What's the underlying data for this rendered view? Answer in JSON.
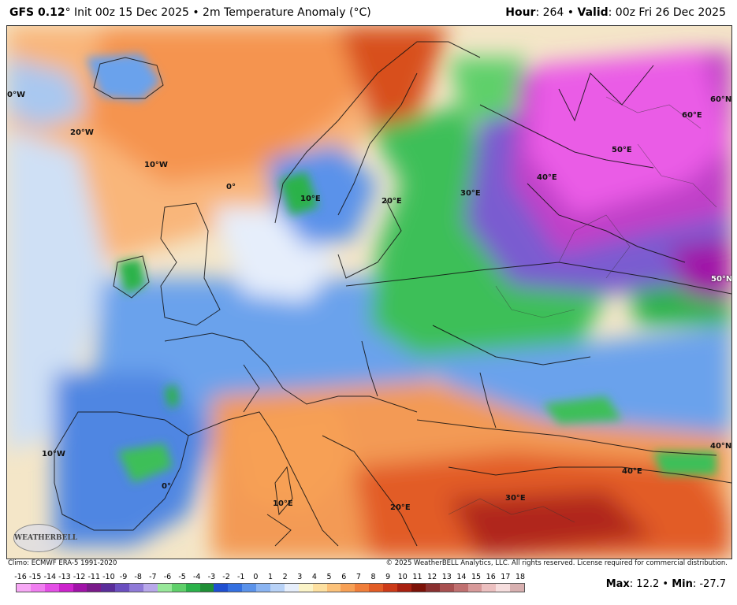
{
  "header": {
    "model": "GFS 0.12",
    "init": "° Init 00z 15 Dec 2025 • 2m Temperature Anomaly (°C)",
    "hour_label": "Hour",
    "hour_value": ": 264 • ",
    "valid_label": "Valid",
    "valid_value": ": 00z Fri 26 Dec 2025"
  },
  "map": {
    "labels": [
      {
        "id": "lon-0w-top",
        "text": "0°W"
      },
      {
        "id": "lon-20w",
        "text": "20°W"
      },
      {
        "id": "lon-10w-top",
        "text": "10°W"
      },
      {
        "id": "lon-0",
        "text": "0°"
      },
      {
        "id": "lon-10e-top",
        "text": "10°E"
      },
      {
        "id": "lon-20e-top",
        "text": "20°E"
      },
      {
        "id": "lon-30e-top",
        "text": "30°E"
      },
      {
        "id": "lon-40e-top",
        "text": "40°E"
      },
      {
        "id": "lon-50e",
        "text": "50°E"
      },
      {
        "id": "lat-60e",
        "text": "60°E"
      },
      {
        "id": "lat-60n",
        "text": "60°N"
      },
      {
        "id": "lat-50n",
        "text": "50°N"
      },
      {
        "id": "lon-10w-bottom",
        "text": "10°W"
      },
      {
        "id": "lon-0-bottom",
        "text": "0°"
      },
      {
        "id": "lon-10e-bottom",
        "text": "10°E"
      },
      {
        "id": "lon-20e-bottom",
        "text": "20°E"
      },
      {
        "id": "lon-30e-bottom",
        "text": "30°E"
      },
      {
        "id": "lon-40e-bottom",
        "text": "40°E"
      },
      {
        "id": "lat-40n",
        "text": "40°N"
      }
    ],
    "logo": "WEATHERBELL"
  },
  "credits": {
    "climo": "Climo: ECMWF ERA-5 1991-2020",
    "copyright": "© 2025 WeatherBELL Analytics, LLC. All rights reserved. License required for commercial distribution."
  },
  "scale": {
    "ticks": [
      "-16",
      "-15",
      "-14",
      "-13",
      "-12",
      "-11",
      "-10",
      "-9",
      "-8",
      "-7",
      "-6",
      "-5",
      "-4",
      "-3",
      "-2",
      "-1",
      "0",
      "1",
      "2",
      "3",
      "4",
      "5",
      "6",
      "7",
      "8",
      "9",
      "10",
      "11",
      "12",
      "13",
      "14",
      "15",
      "16",
      "17",
      "18"
    ],
    "colors": [
      "#f7a8f5",
      "#f07ef0",
      "#e44ee6",
      "#cc22cc",
      "#a012a8",
      "#7a1a8a",
      "#5a2d9a",
      "#6b4fc0",
      "#8f7ad8",
      "#b8a8ea",
      "#98e89a",
      "#5fd06a",
      "#2bb24a",
      "#1f8f36",
      "#1f4fd0",
      "#3470e0",
      "#5a92ea",
      "#8ab4f2",
      "#b8d2f7",
      "#e6eefb",
      "#fbf4c8",
      "#fde0a0",
      "#fcc27a",
      "#f7a055",
      "#f07e3a",
      "#e25c25",
      "#cc3a18",
      "#a82010",
      "#7c1208",
      "#8a3030",
      "#a85050",
      "#c07070",
      "#d89a9a",
      "#ecc0c0",
      "#f6dede",
      "#d8b0b0"
    ],
    "max_label": "Max",
    "max_value": ": 12.2 • ",
    "min_label": "Min",
    "min_value": ": -27.7"
  }
}
